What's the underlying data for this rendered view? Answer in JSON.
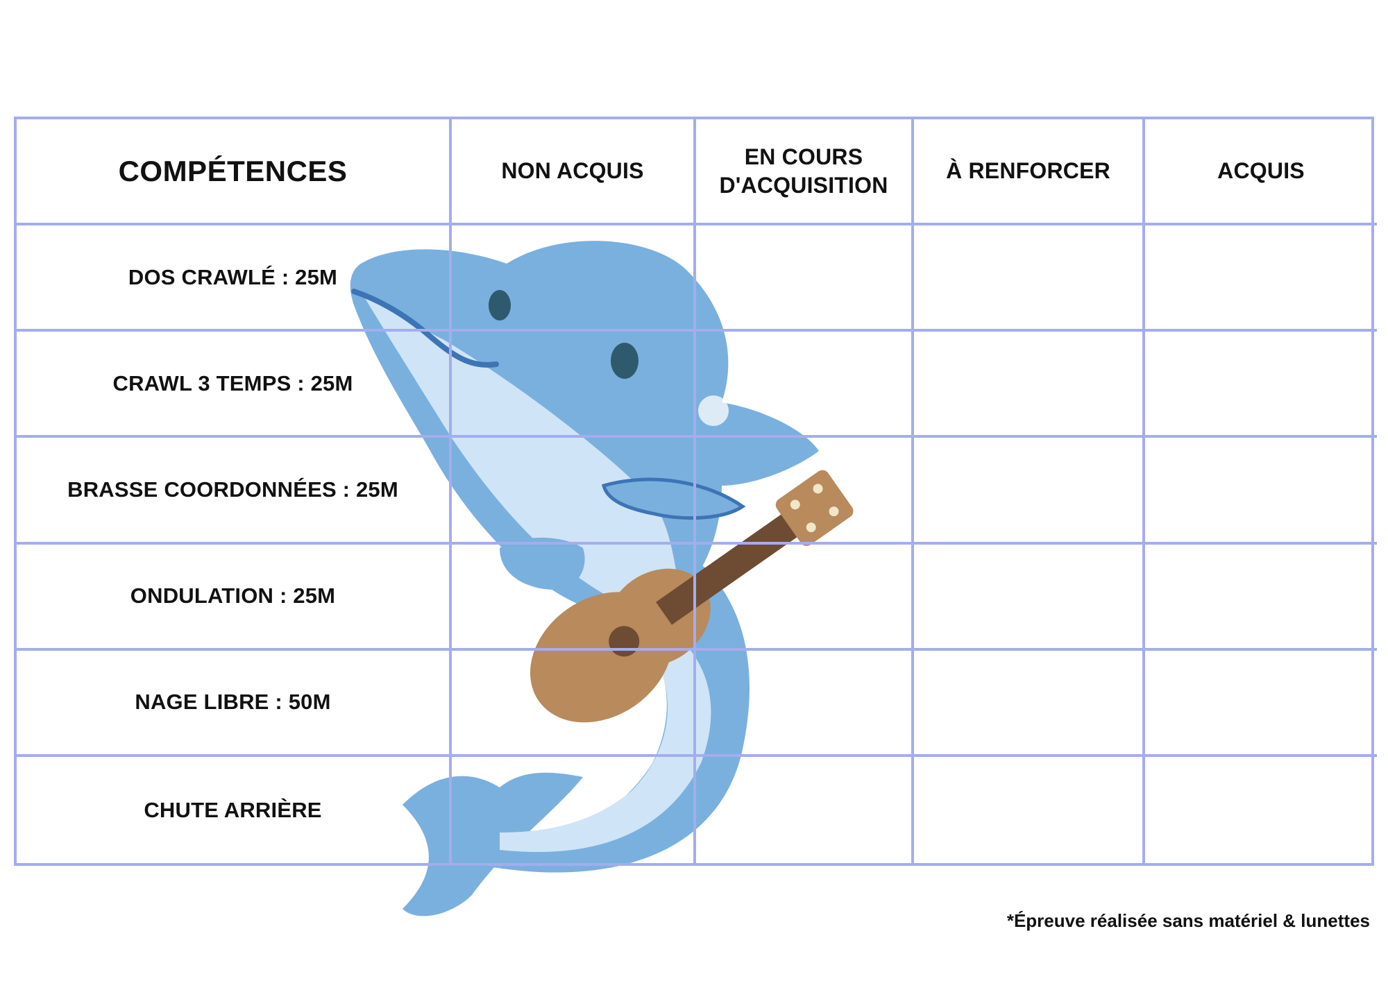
{
  "table": {
    "headers": {
      "skills": "COMPÉTENCES",
      "not_acquired": "NON ACQUIS",
      "in_progress_line1": "EN COURS",
      "in_progress_line2": "D'ACQUISITION",
      "to_reinforce": "À RENFORCER",
      "acquired": "ACQUIS"
    },
    "rows": [
      {
        "skill": "DOS CRAWLÉ : 25M"
      },
      {
        "skill": "CRAWL 3 TEMPS : 25M"
      },
      {
        "skill": "BRASSE COORDONNÉES : 25M"
      },
      {
        "skill": "ONDULATION : 25M"
      },
      {
        "skill": "NAGE LIBRE : 50M"
      },
      {
        "skill": "CHUTE ARRIÈRE"
      }
    ]
  },
  "footnote": "*Épreuve réalisée sans matériel & lunettes",
  "illustration": {
    "subject": "dolphin-playing-ukulele",
    "colors": {
      "body": "#7ab0de",
      "belly": "#cfe4f6",
      "outline": "#3d74b5",
      "ukulele": "#b88a5c",
      "grid_lines": "#a4adee"
    }
  }
}
